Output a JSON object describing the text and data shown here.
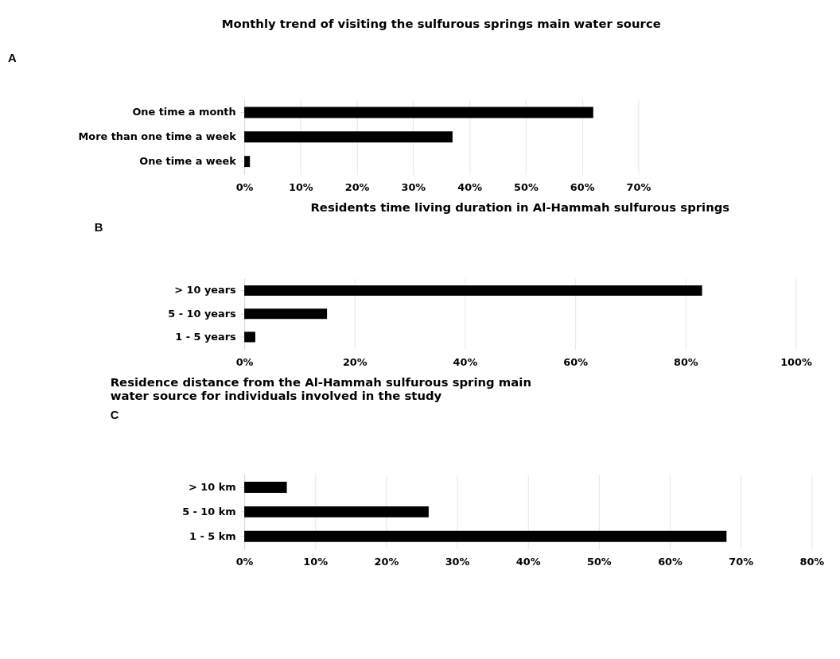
{
  "chart_data": [
    {
      "type": "bar",
      "orientation": "horizontal",
      "title": "Monthly trend of visiting the sulfurous springs main water source",
      "annotations": [
        "A"
      ],
      "categories": [
        "One time a month",
        "More than one time a week",
        "One time a week"
      ],
      "values": [
        62,
        37,
        1
      ],
      "color": "#000000",
      "xlim": [
        0,
        70
      ],
      "xticks": [
        {
          "value": 0,
          "label": "0%"
        },
        {
          "value": 10,
          "label": "10%"
        },
        {
          "value": 20,
          "label": "20%"
        },
        {
          "value": 30,
          "label": "30%"
        },
        {
          "value": 40,
          "label": "40%"
        },
        {
          "value": 50,
          "label": "50%"
        },
        {
          "value": 60,
          "label": "60%"
        },
        {
          "value": 70,
          "label": "70%"
        }
      ],
      "grid": "x"
    },
    {
      "type": "bar",
      "orientation": "horizontal",
      "title": "Residents time living duration in Al-Hammah sulfurous springs",
      "annotations": [
        "B"
      ],
      "categories": [
        "> 10 years",
        "5 - 10 years",
        "1 - 5 years"
      ],
      "values": [
        83,
        15,
        2
      ],
      "color": "#000000",
      "xlim": [
        0,
        100
      ],
      "xticks": [
        {
          "value": 0,
          "label": "0%"
        },
        {
          "value": 20,
          "label": "20%"
        },
        {
          "value": 40,
          "label": "40%"
        },
        {
          "value": 60,
          "label": "60%"
        },
        {
          "value": 80,
          "label": "80%"
        },
        {
          "value": 100,
          "label": "100%"
        }
      ],
      "grid": "x"
    },
    {
      "type": "bar",
      "orientation": "horizontal",
      "title": "Residence distance from the Al-Hammah sulfurous spring main water source for individuals involved in the study",
      "annotations": [
        "C"
      ],
      "categories": [
        "> 10 km",
        "5 - 10 km",
        "1 - 5 km"
      ],
      "values": [
        6,
        26,
        68
      ],
      "color": "#000000",
      "xlim": [
        0,
        80
      ],
      "xticks": [
        {
          "value": 0,
          "label": "0%"
        },
        {
          "value": 10,
          "label": "10%"
        },
        {
          "value": 20,
          "label": "20%"
        },
        {
          "value": 30,
          "label": "30%"
        },
        {
          "value": 40,
          "label": "40%"
        },
        {
          "value": 50,
          "label": "50%"
        },
        {
          "value": 60,
          "label": "60%"
        },
        {
          "value": 70,
          "label": "70%"
        },
        {
          "value": 80,
          "label": "80%"
        }
      ],
      "grid": "x"
    }
  ]
}
